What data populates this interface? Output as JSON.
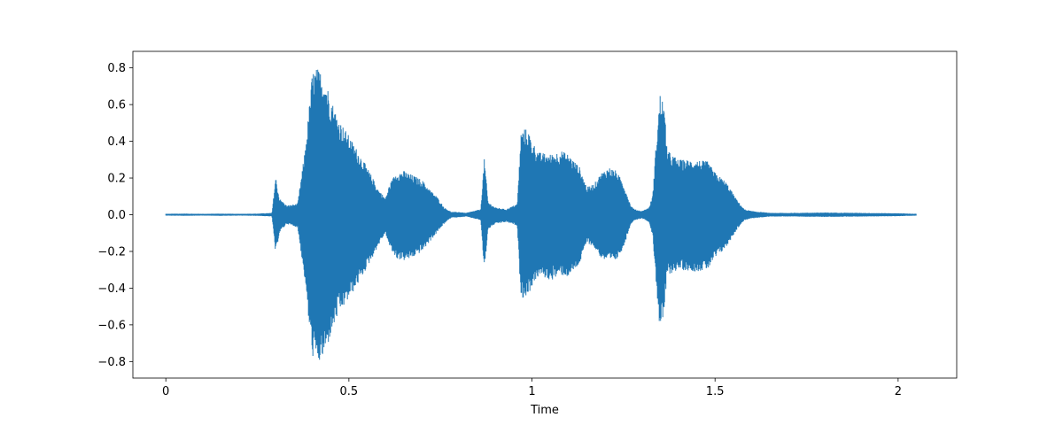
{
  "chart_data": {
    "type": "line",
    "title": "",
    "xlabel": "Time",
    "ylabel": "",
    "xlim": [
      -0.09,
      2.16
    ],
    "ylim": [
      -0.89,
      0.89
    ],
    "x_ticks": [
      0,
      0.5,
      1,
      1.5,
      2
    ],
    "x_tick_labels": [
      "0",
      "0.5",
      "1",
      "1.5",
      "2"
    ],
    "y_ticks": [
      -0.8,
      -0.6,
      -0.4,
      -0.2,
      0.0,
      0.2,
      0.4,
      0.6,
      0.8
    ],
    "y_tick_labels": [
      "−0.8",
      "−0.6",
      "−0.4",
      "−0.2",
      "0.0",
      "0.2",
      "0.4",
      "0.6",
      "0.8"
    ],
    "grid": false,
    "legend": "none",
    "series": [
      {
        "color": "#1f77b4",
        "envelope": {
          "time": [
            0.0,
            0.05,
            0.1,
            0.15,
            0.2,
            0.25,
            0.29,
            0.3,
            0.31,
            0.33,
            0.36,
            0.38,
            0.39,
            0.4,
            0.41,
            0.42,
            0.43,
            0.44,
            0.45,
            0.47,
            0.5,
            0.53,
            0.56,
            0.58,
            0.6,
            0.61,
            0.62,
            0.63,
            0.65,
            0.67,
            0.7,
            0.72,
            0.74,
            0.76,
            0.78,
            0.8,
            0.82,
            0.84,
            0.86,
            0.87,
            0.88,
            0.9,
            0.93,
            0.96,
            0.97,
            0.98,
            0.99,
            1.0,
            1.02,
            1.05,
            1.08,
            1.1,
            1.13,
            1.15,
            1.17,
            1.19,
            1.21,
            1.23,
            1.25,
            1.27,
            1.28,
            1.3,
            1.32,
            1.33,
            1.34,
            1.35,
            1.36,
            1.37,
            1.4,
            1.45,
            1.48,
            1.5,
            1.53,
            1.56,
            1.58,
            1.6,
            1.65,
            1.7,
            1.8,
            1.9,
            2.0,
            2.05
          ],
          "upper": [
            0.005,
            0.006,
            0.005,
            0.006,
            0.005,
            0.006,
            0.01,
            0.21,
            0.09,
            0.05,
            0.06,
            0.35,
            0.55,
            0.78,
            0.8,
            0.79,
            0.76,
            0.71,
            0.64,
            0.53,
            0.43,
            0.33,
            0.22,
            0.14,
            0.09,
            0.16,
            0.2,
            0.23,
            0.24,
            0.22,
            0.19,
            0.14,
            0.1,
            0.04,
            0.015,
            0.015,
            0.01,
            0.02,
            0.03,
            0.31,
            0.07,
            0.04,
            0.03,
            0.06,
            0.45,
            0.47,
            0.46,
            0.4,
            0.34,
            0.33,
            0.35,
            0.33,
            0.26,
            0.15,
            0.17,
            0.23,
            0.26,
            0.24,
            0.17,
            0.05,
            0.03,
            0.02,
            0.04,
            0.11,
            0.42,
            0.66,
            0.61,
            0.35,
            0.3,
            0.3,
            0.29,
            0.23,
            0.18,
            0.08,
            0.03,
            0.02,
            0.01,
            0.01,
            0.012,
            0.01,
            0.008,
            0.005
          ],
          "lower": [
            -0.005,
            -0.006,
            -0.005,
            -0.006,
            -0.005,
            -0.006,
            -0.01,
            -0.22,
            -0.1,
            -0.05,
            -0.07,
            -0.36,
            -0.58,
            -0.77,
            -0.8,
            -0.81,
            -0.78,
            -0.73,
            -0.66,
            -0.55,
            -0.46,
            -0.36,
            -0.25,
            -0.17,
            -0.1,
            -0.17,
            -0.21,
            -0.24,
            -0.25,
            -0.24,
            -0.2,
            -0.15,
            -0.1,
            -0.05,
            -0.015,
            -0.015,
            -0.01,
            -0.02,
            -0.03,
            -0.31,
            -0.08,
            -0.05,
            -0.04,
            -0.06,
            -0.46,
            -0.45,
            -0.44,
            -0.39,
            -0.33,
            -0.36,
            -0.33,
            -0.34,
            -0.27,
            -0.15,
            -0.18,
            -0.24,
            -0.26,
            -0.25,
            -0.18,
            -0.05,
            -0.03,
            -0.02,
            -0.04,
            -0.12,
            -0.39,
            -0.66,
            -0.55,
            -0.33,
            -0.3,
            -0.31,
            -0.3,
            -0.24,
            -0.18,
            -0.08,
            -0.03,
            -0.02,
            -0.01,
            -0.01,
            -0.012,
            -0.01,
            -0.008,
            -0.005
          ]
        }
      }
    ]
  }
}
